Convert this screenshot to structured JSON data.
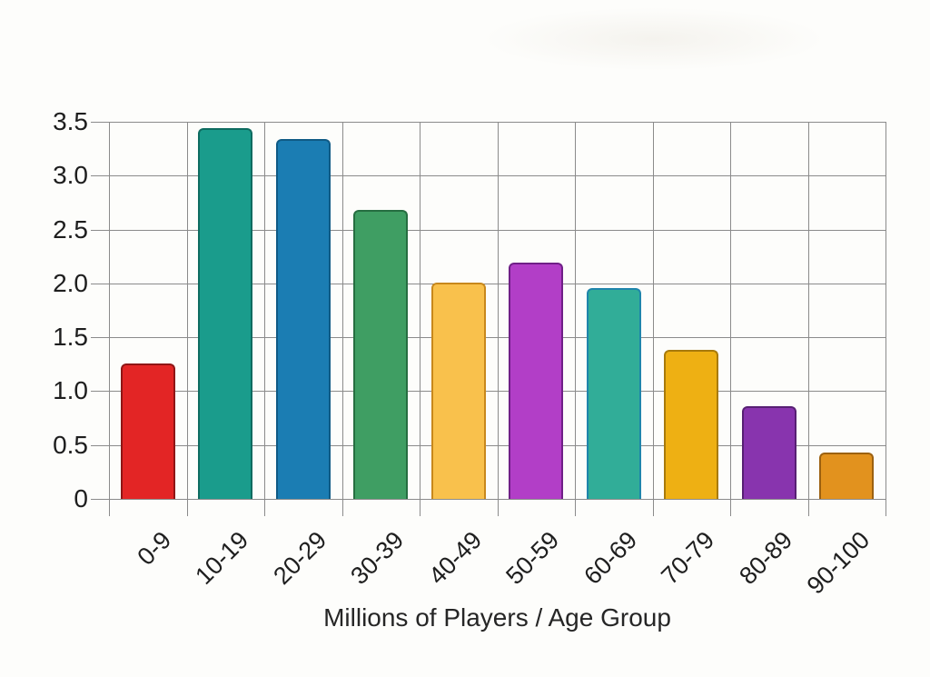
{
  "chart_data": {
    "type": "bar",
    "categories": [
      "0-9",
      "10-19",
      "20-29",
      "30-39",
      "40-49",
      "50-59",
      "60-69",
      "70-79",
      "80-89",
      "90-100"
    ],
    "values": [
      1.26,
      3.44,
      3.34,
      2.68,
      2.01,
      2.19,
      1.96,
      1.38,
      0.86,
      0.43
    ],
    "bar_colors": [
      "#e32525",
      "#1a9c8c",
      "#1b7db3",
      "#3f9e63",
      "#f9c14c",
      "#b23ec7",
      "#31ad98",
      "#eeb013",
      "#8834ae",
      "#e2921e"
    ],
    "bar_border_colors": [
      "#8f1616",
      "#0e6b60",
      "#0f5a85",
      "#266e41",
      "#c8881c",
      "#701f87",
      "#1f85ab",
      "#a87a0b",
      "#571f73",
      "#9c6110"
    ],
    "title": "",
    "xlabel": "Millions of Players / Age Group",
    "ylabel": "",
    "ylim": [
      0,
      3.5
    ],
    "ytick_labels": [
      "0",
      "0.5",
      "1.0",
      "1.5",
      "2.0",
      "2.5",
      "3.0",
      "3.5"
    ],
    "grid": true,
    "gridline_color": "#8b8b8b",
    "legend": "none"
  }
}
